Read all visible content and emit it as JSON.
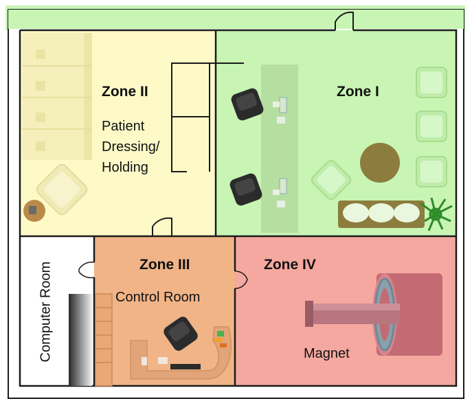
{
  "zones": {
    "zone1": {
      "label": "Zone I",
      "color": "#c8f5b4"
    },
    "zone2": {
      "label": "Zone II",
      "color": "#fdfac8"
    },
    "zone3": {
      "label": "Zone III",
      "color": "#f0b487"
    },
    "zone4": {
      "label": "Zone IV",
      "color": "#f5a8a0"
    }
  },
  "rooms": {
    "patient_area": {
      "lines": [
        "Patient",
        "Dressing/",
        "Holding"
      ]
    },
    "control_room": {
      "label": "Control Room"
    },
    "computer_room": {
      "label": "Computer Room",
      "color": "#ffffff"
    },
    "magnet": {
      "label": "Magnet"
    }
  },
  "icons": [
    "door-icon",
    "chair-icon",
    "computer-monitor-icon",
    "armchair-icon",
    "round-table-icon",
    "sofa-icon",
    "potted-plant-icon",
    "side-table-icon",
    "locker-icon",
    "mri-magnet-icon",
    "server-rack-icon",
    "bookshelf-icon",
    "desk-icon"
  ],
  "colors": {
    "wall": "#1a1a1a",
    "outer_strip": "#c8f5b4"
  }
}
